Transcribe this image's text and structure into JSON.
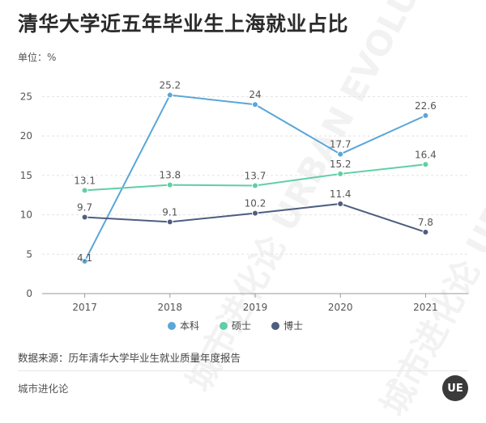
{
  "title": "清华大学近五年毕业生上海就业占比",
  "unit_label": "单位：%",
  "source": "数据来源：历年清华大学毕业生就业质量年度报告",
  "footer": {
    "brand": "城市进化论",
    "logo_text": "UE"
  },
  "colors": {
    "benke": "#5aa6d8",
    "shuoshi": "#5fcfa4",
    "boshi": "#4e5d80"
  },
  "chart_data": {
    "type": "line",
    "title": "清华大学近五年毕业生上海就业占比",
    "xlabel": "",
    "ylabel": "单位：%",
    "x": [
      "2017",
      "2018",
      "2019",
      "2020",
      "2021"
    ],
    "y_ticks": [
      0,
      5,
      10,
      15,
      20,
      25
    ],
    "ylim": [
      0,
      27
    ],
    "grid": true,
    "legend_position": "bottom",
    "series": [
      {
        "name": "本科",
        "values": [
          4.1,
          25.2,
          24,
          17.7,
          22.6
        ],
        "labels": [
          "4.1",
          "25.2",
          "24",
          "17.7",
          "22.6"
        ]
      },
      {
        "name": "硕士",
        "values": [
          13.1,
          13.8,
          13.7,
          15.2,
          16.4
        ],
        "labels": [
          "13.1",
          "13.8",
          "13.7",
          "15.2",
          "16.4"
        ]
      },
      {
        "name": "博士",
        "values": [
          9.7,
          9.1,
          10.2,
          11.4,
          7.8
        ],
        "labels": [
          "9.7",
          "9.1",
          "10.2",
          "11.4",
          "7.8"
        ]
      }
    ]
  }
}
